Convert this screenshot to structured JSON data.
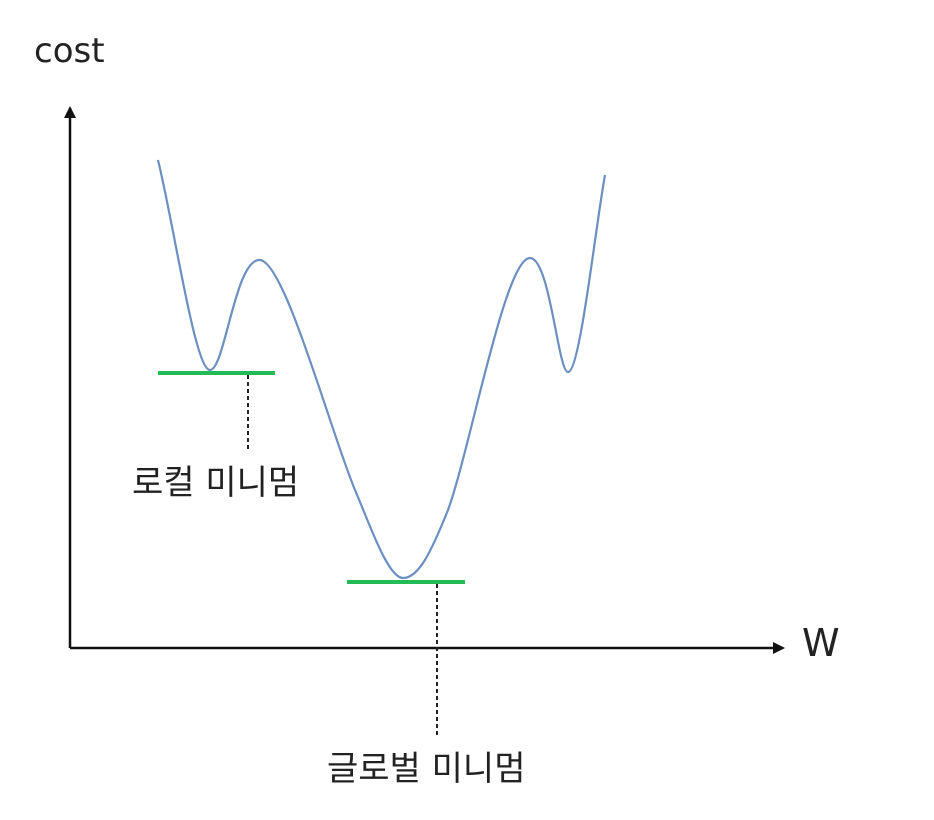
{
  "axes": {
    "y_label": "cost",
    "x_label": "W"
  },
  "annotations": {
    "local_minimum": "로컬 미니멈",
    "global_minimum": "글로벌 미니멈"
  },
  "colors": {
    "curve": "#6b8fc0",
    "minimum_marker": "#22bb55",
    "axis": "#111111",
    "text": "#222222"
  }
}
